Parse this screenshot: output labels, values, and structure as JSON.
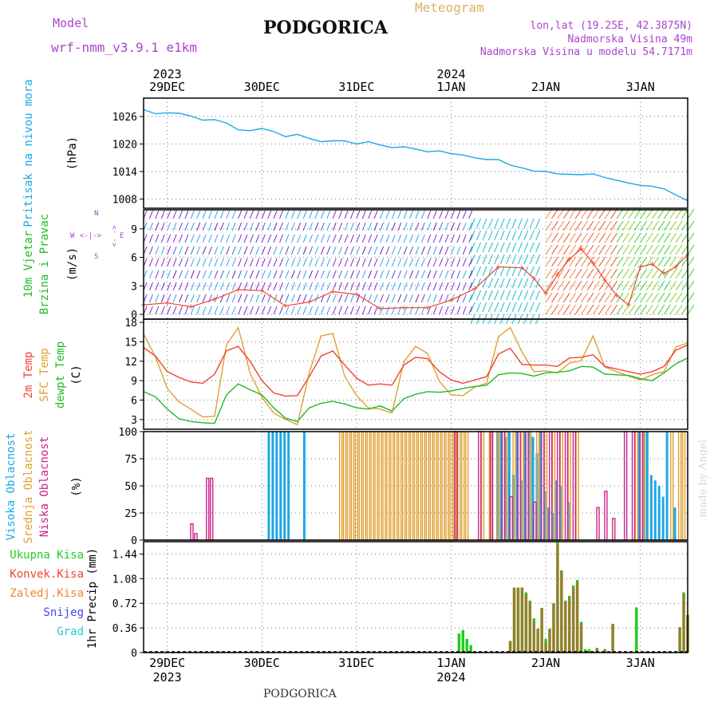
{
  "header": {
    "model_label": "Model",
    "model_name": "wrf-nmm_v3.9.1  e1km",
    "station": "PODGORICA",
    "meteogram_label": "Meteogram",
    "lonlat": "lon,lat (19.25E, 42.3875N)",
    "elevation": "Nadmorska Visina 49m",
    "model_elevation": "Nadmorska Visina u modelu 54.7171m",
    "footer_station": "PODGORICA",
    "credit": "made by Angel"
  },
  "colors": {
    "pressure": "#1ea7e6",
    "wind_speed_red": "#ee4433",
    "t2m": "#ee4433",
    "sfc": "#e0a030",
    "dew": "#22bb22",
    "high_cloud": "#1ea7e6",
    "mid_cloud": "#e0a030",
    "low_cloud": "#cc2288",
    "total_precip": "#22cc22",
    "conv_precip": "#ee4433",
    "frozen_precip": "#ee8833",
    "snow": "#4444ee",
    "hail": "#22cccc",
    "purple_text": "#aa44cc",
    "gold_text": "#e0b060"
  },
  "time_axis": {
    "top_years": [
      "2023",
      "2024"
    ],
    "bottom_years": [
      "2023",
      "2024"
    ],
    "days": [
      "29DEC",
      "30DEC",
      "31DEC",
      "1JAN",
      "2JAN",
      "3JAN"
    ]
  },
  "wind_legend": {
    "n": "N",
    "w": "W",
    "e": "E",
    "s": "S",
    "arrows_v": "<-  ->",
    "arrows_h": "<-|->"
  },
  "chart_data": [
    {
      "type": "line",
      "panel": "pressure",
      "ylabel": "Pritisak na nivou mora",
      "unit": "(hPa)",
      "ylim": [
        1006,
        1030
      ],
      "yticks": [
        1008,
        1014,
        1020,
        1026
      ],
      "x_hours": [
        0,
        3,
        6,
        9,
        12,
        15,
        18,
        21,
        24,
        27,
        30,
        33,
        36,
        39,
        42,
        45,
        48,
        51,
        54,
        57,
        60,
        63,
        66,
        69,
        72,
        75,
        78,
        81,
        84,
        87,
        90,
        93,
        96,
        99,
        102,
        105,
        108,
        111,
        114,
        117,
        120,
        123,
        126,
        129,
        132,
        135,
        138
      ],
      "values": [
        1027.5,
        1026.6,
        1026.8,
        1026.7,
        1026.1,
        1025.2,
        1025.3,
        1024.6,
        1023.1,
        1022.9,
        1023.4,
        1022.7,
        1021.6,
        1022.1,
        1021.2,
        1020.5,
        1020.7,
        1020.7,
        1020.0,
        1020.5,
        1019.8,
        1019.2,
        1019.4,
        1018.9,
        1018.3,
        1018.5,
        1017.9,
        1017.6,
        1017.0,
        1016.6,
        1016.6,
        1015.4,
        1014.8,
        1014.1,
        1014.0,
        1013.5,
        1013.4,
        1013.3,
        1013.5,
        1012.7,
        1012.1,
        1011.5,
        1011.0,
        1010.8,
        1010.2,
        1008.9,
        1007.6
      ]
    },
    {
      "type": "line",
      "panel": "wind",
      "ylabel": "10m Vjetar Brzina i Pravac",
      "unit": "(m/s)",
      "ylim": [
        -0.5,
        11
      ],
      "yticks": [
        0,
        3,
        6,
        9
      ],
      "x_hours": [
        0,
        6,
        12,
        18,
        24,
        30,
        36,
        42,
        48,
        54,
        60,
        66,
        72,
        78,
        84,
        90,
        96,
        99,
        102,
        105,
        108,
        111,
        114,
        117,
        120,
        123,
        126,
        129,
        132,
        135,
        138
      ],
      "values": [
        1.0,
        1.2,
        0.8,
        1.6,
        2.6,
        2.5,
        0.9,
        1.3,
        2.4,
        2.1,
        0.6,
        0.7,
        0.7,
        1.5,
        2.7,
        5.0,
        4.9,
        3.8,
        2.2,
        4.2,
        5.8,
        6.9,
        5.4,
        3.6,
        2.0,
        1.0,
        5.0,
        5.3,
        4.3,
        5.0,
        6.3
      ]
    },
    {
      "type": "line",
      "panel": "temperature",
      "ylabel": "2m Temp / SFC Temp / dewpt Temp",
      "unit": "(C)",
      "ylim": [
        1.5,
        18.5
      ],
      "yticks": [
        3,
        6,
        9,
        12,
        15,
        18
      ],
      "x_hours": [
        0,
        3,
        6,
        9,
        12,
        15,
        18,
        21,
        24,
        27,
        30,
        33,
        36,
        39,
        42,
        45,
        48,
        51,
        54,
        57,
        60,
        63,
        66,
        69,
        72,
        75,
        78,
        81,
        84,
        87,
        90,
        93,
        96,
        99,
        102,
        105,
        108,
        111,
        114,
        117,
        120,
        123,
        126,
        129,
        132,
        135,
        138
      ],
      "series": [
        {
          "name": "2m Temp",
          "values": [
            14.1,
            12.8,
            10.4,
            9.5,
            8.8,
            8.6,
            10.0,
            13.6,
            14.3,
            12.0,
            9.0,
            7.1,
            6.6,
            6.7,
            9.6,
            12.8,
            13.6,
            11.4,
            9.4,
            8.3,
            8.5,
            8.3,
            11.4,
            12.6,
            12.4,
            10.4,
            9.1,
            8.6,
            9.1,
            9.6,
            13.1,
            14.0,
            11.5,
            11.4,
            11.4,
            11.2,
            12.5,
            12.6,
            13.0,
            11.2,
            10.8,
            10.4,
            10.0,
            10.4,
            11.2,
            13.7,
            14.5
          ]
        },
        {
          "name": "SFC Temp",
          "values": [
            16.2,
            12.7,
            7.8,
            5.7,
            4.6,
            3.4,
            3.5,
            14.5,
            17.2,
            10.2,
            6.4,
            4.0,
            3.0,
            2.2,
            10.2,
            15.9,
            16.3,
            9.7,
            6.7,
            4.8,
            4.6,
            4.0,
            11.9,
            14.3,
            13.2,
            8.9,
            6.8,
            6.7,
            8.0,
            8.6,
            15.8,
            17.2,
            13.4,
            10.4,
            10.5,
            10.2,
            11.7,
            12.1,
            15.9,
            11.1,
            10.4,
            9.7,
            9.1,
            9.9,
            10.4,
            14.2,
            14.8
          ]
        },
        {
          "name": "dewpt Temp",
          "values": [
            7.3,
            6.5,
            4.6,
            3.1,
            2.7,
            2.5,
            2.4,
            6.8,
            8.5,
            7.6,
            6.8,
            4.8,
            3.2,
            2.7,
            4.8,
            5.5,
            5.8,
            5.4,
            4.8,
            4.6,
            5.1,
            4.3,
            6.2,
            6.9,
            7.3,
            7.2,
            7.4,
            7.8,
            8.1,
            8.3,
            9.9,
            10.2,
            10.1,
            9.7,
            10.2,
            10.3,
            10.5,
            11.2,
            11.1,
            10.0,
            9.9,
            9.8,
            9.3,
            9.0,
            10.2,
            11.6,
            12.5
          ]
        }
      ]
    },
    {
      "type": "bar",
      "panel": "clouds",
      "ylabel": "Visoka Oblacnost / Srednja Oblacnost / Niska Oblacnost",
      "unit": "(%)",
      "ylim": [
        0,
        100
      ],
      "yticks": [
        0,
        25,
        50,
        75,
        100
      ],
      "series": [
        {
          "name": "Visoka Oblacnost",
          "hours": [
            32,
            33,
            34,
            35,
            36,
            37,
            41,
            90,
            91,
            92,
            93,
            94,
            95,
            96,
            97,
            98,
            99,
            100,
            101,
            102,
            103,
            104,
            105,
            106,
            108,
            126,
            127,
            128,
            129,
            130,
            131,
            132,
            133,
            135
          ],
          "values": [
            100,
            100,
            100,
            100,
            100,
            100,
            100,
            100,
            100,
            95,
            100,
            60,
            100,
            55,
            100,
            100,
            95,
            80,
            100,
            45,
            30,
            25,
            55,
            50,
            35,
            100,
            100,
            100,
            60,
            55,
            50,
            40,
            100,
            30
          ]
        },
        {
          "name": "Srednja Oblacnost",
          "hours": [
            50,
            51,
            52,
            53,
            54,
            55,
            56,
            57,
            58,
            59,
            60,
            61,
            62,
            63,
            64,
            65,
            66,
            67,
            68,
            69,
            70,
            71,
            72,
            73,
            74,
            75,
            76,
            77,
            78,
            79,
            80,
            81,
            82,
            86,
            88,
            90,
            92,
            94,
            96,
            98,
            100,
            102,
            104,
            106,
            108,
            110,
            125,
            127,
            134,
            136,
            137
          ],
          "values": [
            100,
            100,
            100,
            100,
            100,
            100,
            100,
            100,
            100,
            100,
            100,
            100,
            100,
            100,
            100,
            100,
            100,
            100,
            100,
            100,
            100,
            100,
            100,
            100,
            100,
            100,
            100,
            100,
            100,
            100,
            100,
            100,
            100,
            100,
            100,
            100,
            100,
            100,
            100,
            100,
            100,
            100,
            100,
            100,
            100,
            100,
            100,
            100,
            100,
            100,
            100
          ]
        },
        {
          "name": "Niska Oblacnost",
          "hours": [
            12,
            13,
            16,
            17,
            79,
            85,
            88,
            91,
            93,
            95,
            97,
            99,
            101,
            103,
            105,
            107,
            109,
            115,
            117,
            119,
            122,
            124,
            126
          ],
          "values": [
            15,
            6,
            57,
            57,
            100,
            100,
            100,
            100,
            40,
            100,
            100,
            35,
            100,
            100,
            100,
            100,
            100,
            30,
            45,
            20,
            100,
            100,
            100
          ]
        }
      ]
    },
    {
      "type": "bar",
      "panel": "precipitation",
      "ylabel": "1hr Precip",
      "unit": "(mm)",
      "legend": [
        "Ukupna Kisa",
        "Konvek.Kisa",
        "Zaledj.Kisa",
        "Snijeg",
        "Grad"
      ],
      "ylim": [
        0,
        1.62
      ],
      "yticks": [
        0,
        0.36,
        0.72,
        1.08,
        1.44
      ],
      "hours": [
        68,
        70,
        80,
        81,
        82,
        83,
        93,
        94,
        95,
        96,
        97,
        98,
        99,
        100,
        101,
        102,
        103,
        104,
        105,
        106,
        107,
        108,
        109,
        110,
        111,
        112,
        113,
        114,
        115,
        117,
        119,
        125,
        136,
        137,
        138
      ],
      "series": [
        {
          "name": "Ukupna Kisa",
          "values": [
            0.02,
            0.02,
            0.28,
            0.33,
            0.2,
            0.11,
            0.17,
            0.95,
            0.95,
            0.95,
            0.88,
            0.76,
            0.5,
            0.35,
            0.65,
            0.2,
            0.35,
            0.72,
            1.62,
            1.2,
            0.76,
            0.83,
            0.98,
            1.06,
            0.45,
            0.05,
            0.05,
            0.02,
            0.07,
            0.05,
            0.42,
            0.66,
            0.37,
            0.88,
            0.55
          ]
        },
        {
          "name": "Konvek.Kisa",
          "values": [
            0,
            0,
            0,
            0,
            0,
            0,
            0.17,
            0.95,
            0.95,
            0.95,
            0.85,
            0.74,
            0.45,
            0.35,
            0.65,
            0.15,
            0.34,
            0.72,
            1.58,
            1.2,
            0.74,
            0.8,
            0.95,
            1.03,
            0.42,
            0,
            0,
            0,
            0.06,
            0.05,
            0.42,
            0,
            0.37,
            0.86,
            0.55
          ]
        }
      ]
    }
  ]
}
